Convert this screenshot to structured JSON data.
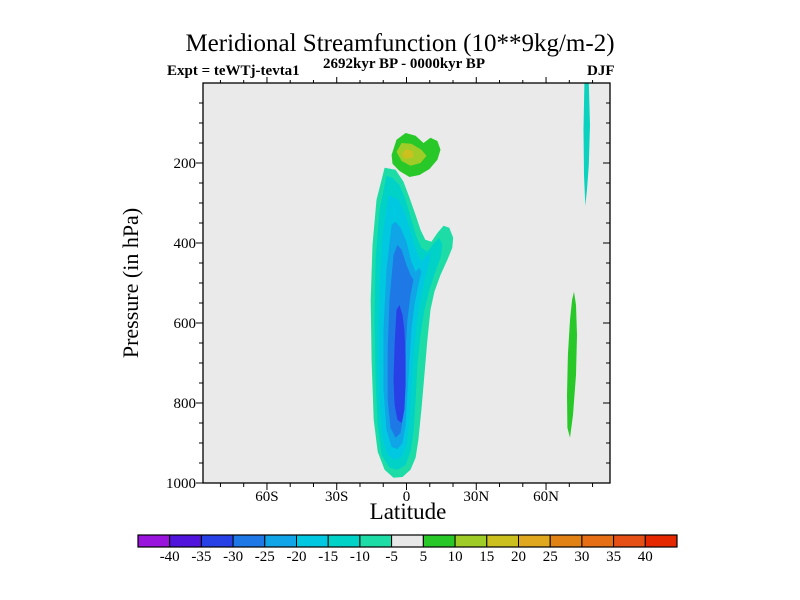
{
  "colors": {
    "page_background": "#FFFFFF",
    "plot_background": "#EAEAEA",
    "axis": "#000000",
    "text": "#000000"
  },
  "header": {
    "title": "Meridional Streamfunction (10**9kg/m-2)",
    "subtitle": "2692kyr BP - 0000kyr BP",
    "experiment": "Expt = teWTj-tevta1",
    "season": "DJF"
  },
  "axes": {
    "x": {
      "label": "Latitude",
      "range_deg": [
        -87.5,
        87.5
      ],
      "major_ticks": [
        {
          "value": -60,
          "label": "60S"
        },
        {
          "value": -30,
          "label": "30S"
        },
        {
          "value": 0,
          "label": "0"
        },
        {
          "value": 30,
          "label": "30N"
        },
        {
          "value": 60,
          "label": "60N"
        }
      ],
      "minor_step_deg": 10
    },
    "y": {
      "label": "Pressure (in hPa)",
      "range_hpa": [
        0,
        1000
      ],
      "major_ticks": [
        {
          "value": 200,
          "label": "200"
        },
        {
          "value": 400,
          "label": "400"
        },
        {
          "value": 600,
          "label": "600"
        },
        {
          "value": 800,
          "label": "800"
        },
        {
          "value": 1000,
          "label": "1000"
        }
      ],
      "minor_step_hpa": 50
    }
  },
  "colorbar": {
    "boundary_labels": [
      "-40",
      "-35",
      "-30",
      "-25",
      "-20",
      "-15",
      "-10",
      "-5",
      "5",
      "10",
      "15",
      "20",
      "25",
      "30",
      "35",
      "40"
    ],
    "boundary_values": [
      -40,
      -35,
      -30,
      -25,
      -20,
      -15,
      -10,
      -5,
      5,
      10,
      15,
      20,
      25,
      30,
      35,
      40
    ],
    "segment_colors": [
      "#9914DC",
      "#5014DC",
      "#2841E6",
      "#1E78E6",
      "#0FA5E6",
      "#00C8E0",
      "#00D2C8",
      "#1EDCA5",
      "#E8E8E8",
      "#28C828",
      "#A0CC28",
      "#CCC01E",
      "#E0A81E",
      "#E08214",
      "#E66E14",
      "#E65014",
      "#E62800"
    ]
  },
  "chart_data": {
    "type": "heatmap",
    "subtype": "filled-contour",
    "title": "Meridional Streamfunction (10**9kg/m-2)",
    "subtitle": "2692kyr BP - 0000kyr BP",
    "annotations": [
      "Expt = teWTj-tevta1",
      "DJF"
    ],
    "xlabel": "Latitude",
    "ylabel": "Pressure (in hPa)",
    "units": "10**9 kg/m-2",
    "xlim_deg": [
      -87.5,
      87.5
    ],
    "ylim_hpa": [
      0,
      1000
    ],
    "contour_interval": 5,
    "levels": [
      -40,
      -35,
      -30,
      -25,
      -20,
      -15,
      -10,
      -5,
      5,
      10,
      15,
      20,
      25,
      30,
      35,
      40
    ],
    "features": [
      {
        "name": "tropical-negative-cell",
        "value_range": [
          -35,
          -5
        ],
        "description": "Deep negative column ~15S-20N from ~170 hPa to ~990 hPa, core -30 to -35 near 0-5S at 550-850 hPa"
      },
      {
        "name": "equatorial-upper-positive-blob",
        "value_range": [
          5,
          20
        ],
        "description": "Positive blob ~6S-15N at 120-240 hPa with 15-20 core just north of equator"
      },
      {
        "name": "nh-high-lat-upper-streak",
        "value_range": [
          -10,
          -5
        ],
        "description": "Thin negative streak near 76-79N from plot top to ~300 hPa"
      },
      {
        "name": "nh-high-lat-low-sliver",
        "value_range": [
          5,
          10
        ],
        "description": "Thin positive sliver near 69-73N between ~520 and ~890 hPa"
      }
    ],
    "bands": [
      {
        "name": "neg-cell-minus5",
        "level": -5,
        "color": "#1EDCA5",
        "points": [
          [
            -9.4,
            212
          ],
          [
            -12.9,
            292
          ],
          [
            -14.6,
            405
          ],
          [
            -15.4,
            542
          ],
          [
            -15.0,
            692
          ],
          [
            -14.1,
            842
          ],
          [
            -12.4,
            922
          ],
          [
            -9.4,
            967
          ],
          [
            -5.6,
            987
          ],
          [
            -1.7,
            985
          ],
          [
            1.7,
            967
          ],
          [
            3.9,
            937
          ],
          [
            5.1,
            892
          ],
          [
            6.4,
            817
          ],
          [
            7.7,
            730
          ],
          [
            9.0,
            642
          ],
          [
            10.3,
            567
          ],
          [
            12.0,
            522
          ],
          [
            14.6,
            480
          ],
          [
            17.6,
            442
          ],
          [
            19.7,
            412
          ],
          [
            20.1,
            387
          ],
          [
            18.4,
            362
          ],
          [
            15.9,
            357
          ],
          [
            13.3,
            375
          ],
          [
            10.7,
            397
          ],
          [
            8.1,
            392
          ],
          [
            6.0,
            367
          ],
          [
            3.9,
            330
          ],
          [
            1.3,
            287
          ],
          [
            -1.3,
            247
          ],
          [
            -4.7,
            217
          ]
        ]
      },
      {
        "name": "neg-cell-minus10",
        "level": -10,
        "color": "#00D2C8",
        "points": [
          [
            -8.6,
            232
          ],
          [
            -11.6,
            318
          ],
          [
            -13.3,
            442
          ],
          [
            -13.7,
            592
          ],
          [
            -13.3,
            742
          ],
          [
            -12.4,
            855
          ],
          [
            -10.7,
            930
          ],
          [
            -7.3,
            962
          ],
          [
            -3.9,
            967
          ],
          [
            -0.4,
            955
          ],
          [
            1.7,
            922
          ],
          [
            3.0,
            872
          ],
          [
            3.9,
            792
          ],
          [
            4.7,
            705
          ],
          [
            6.0,
            630
          ],
          [
            7.7,
            567
          ],
          [
            9.9,
            517
          ],
          [
            12.4,
            472
          ],
          [
            14.6,
            437
          ],
          [
            15.4,
            405
          ],
          [
            14.1,
            387
          ],
          [
            11.6,
            402
          ],
          [
            9.0,
            422
          ],
          [
            6.4,
            412
          ],
          [
            4.3,
            385
          ],
          [
            2.1,
            342
          ],
          [
            -0.4,
            292
          ],
          [
            -3.0,
            255
          ],
          [
            -6.0,
            237
          ]
        ]
      },
      {
        "name": "neg-cell-minus15",
        "level": -15,
        "color": "#00C8E0",
        "points": [
          [
            -7.7,
            280
          ],
          [
            -10.3,
            380
          ],
          [
            -11.6,
            517
          ],
          [
            -12.0,
            667
          ],
          [
            -11.6,
            792
          ],
          [
            -10.3,
            887
          ],
          [
            -8.1,
            930
          ],
          [
            -5.1,
            942
          ],
          [
            -2.1,
            935
          ],
          [
            0,
            905
          ],
          [
            1.3,
            842
          ],
          [
            2.1,
            767
          ],
          [
            3.0,
            680
          ],
          [
            4.3,
            605
          ],
          [
            6.0,
            542
          ],
          [
            8.1,
            487
          ],
          [
            9.9,
            447
          ],
          [
            10.3,
            422
          ],
          [
            8.6,
            432
          ],
          [
            6.4,
            447
          ],
          [
            4.3,
            422
          ],
          [
            2.1,
            380
          ],
          [
            -0.4,
            330
          ],
          [
            -3.4,
            292
          ]
        ]
      },
      {
        "name": "neg-cell-minus20",
        "level": -20,
        "color": "#0FA5E6",
        "points": [
          [
            -6.4,
            355
          ],
          [
            -8.6,
            467
          ],
          [
            -9.9,
            617
          ],
          [
            -9.9,
            767
          ],
          [
            -8.6,
            867
          ],
          [
            -6.4,
            910
          ],
          [
            -3.9,
            915
          ],
          [
            -1.7,
            900
          ],
          [
            -0.4,
            855
          ],
          [
            0.4,
            780
          ],
          [
            1.3,
            692
          ],
          [
            2.1,
            617
          ],
          [
            3.4,
            555
          ],
          [
            5.1,
            505
          ],
          [
            6.4,
            472
          ],
          [
            5.6,
            462
          ],
          [
            3.9,
            472
          ],
          [
            2.1,
            447
          ],
          [
            0,
            397
          ],
          [
            -2.6,
            362
          ],
          [
            -4.7,
            347
          ]
        ]
      },
      {
        "name": "neg-cell-minus25",
        "level": -25,
        "color": "#1E78E6",
        "points": [
          [
            -5.6,
            430
          ],
          [
            -7.3,
            542
          ],
          [
            -8.1,
            667
          ],
          [
            -8.1,
            792
          ],
          [
            -6.9,
            862
          ],
          [
            -4.7,
            887
          ],
          [
            -2.6,
            875
          ],
          [
            -1.3,
            830
          ],
          [
            -0.9,
            755
          ],
          [
            -0.4,
            667
          ],
          [
            0.4,
            592
          ],
          [
            1.7,
            530
          ],
          [
            3.0,
            492
          ],
          [
            1.7,
            480
          ],
          [
            0,
            455
          ],
          [
            -2.1,
            417
          ],
          [
            -3.9,
            405
          ]
        ]
      },
      {
        "name": "neg-cell-minus30",
        "level": -30,
        "color": "#2841E6",
        "points": [
          [
            -4.3,
            567
          ],
          [
            -5.1,
            655
          ],
          [
            -5.6,
            742
          ],
          [
            -5.1,
            805
          ],
          [
            -3.9,
            842
          ],
          [
            -2.1,
            850
          ],
          [
            -0.9,
            817
          ],
          [
            -0.4,
            755
          ],
          [
            -0.4,
            680
          ],
          [
            -0.9,
            617
          ],
          [
            -1.7,
            580
          ],
          [
            -3.0,
            555
          ]
        ]
      },
      {
        "name": "upper-blob-plus5",
        "level": 5,
        "color": "#28C828",
        "points": [
          [
            -6.4,
            180
          ],
          [
            -4.3,
            142
          ],
          [
            -0.4,
            125
          ],
          [
            3.9,
            132
          ],
          [
            7.3,
            150
          ],
          [
            10.3,
            137
          ],
          [
            13.3,
            145
          ],
          [
            14.6,
            167
          ],
          [
            13.3,
            192
          ],
          [
            9.9,
            215
          ],
          [
            5.6,
            230
          ],
          [
            1.3,
            235
          ],
          [
            -3.0,
            220
          ],
          [
            -6.0,
            202
          ]
        ]
      },
      {
        "name": "upper-blob-plus10",
        "level": 10,
        "color": "#A0CC28",
        "points": [
          [
            -4.3,
            172
          ],
          [
            -2.1,
            150
          ],
          [
            2.1,
            152
          ],
          [
            6.4,
            167
          ],
          [
            8.6,
            182
          ],
          [
            6.0,
            200
          ],
          [
            1.7,
            207
          ],
          [
            -2.1,
            195
          ]
        ]
      },
      {
        "name": "upper-blob-plus15",
        "level": 15,
        "color": "#CCC01E",
        "points": [
          [
            -2.1,
            180
          ],
          [
            -0.4,
            165
          ],
          [
            2.6,
            170
          ],
          [
            3.0,
            185
          ],
          [
            -0.4,
            190
          ]
        ]
      },
      {
        "name": "nh-upper-streak",
        "level": -5,
        "color": "#0AD2BE",
        "points": [
          [
            76.5,
            0
          ],
          [
            78.4,
            0
          ],
          [
            78.9,
            105
          ],
          [
            78.4,
            205
          ],
          [
            77.6,
            267
          ],
          [
            76.9,
            307
          ],
          [
            76.3,
            230
          ],
          [
            76.1,
            117
          ]
        ]
      },
      {
        "name": "nh-low-sliver",
        "level": 5,
        "color": "#28C828",
        "points": [
          [
            72.0,
            522
          ],
          [
            72.9,
            555
          ],
          [
            73.3,
            630
          ],
          [
            72.9,
            730
          ],
          [
            71.6,
            830
          ],
          [
            70.3,
            887
          ],
          [
            69.2,
            862
          ],
          [
            69.0,
            780
          ],
          [
            69.4,
            680
          ],
          [
            70.3,
            592
          ],
          [
            71.2,
            542
          ]
        ]
      }
    ]
  }
}
